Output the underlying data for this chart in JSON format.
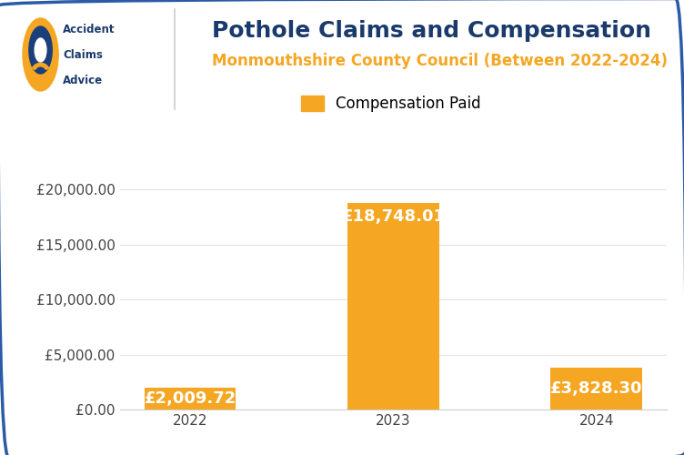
{
  "title": "Pothole Claims and Compensation",
  "subtitle": "Monmouthshire County Council (Between 2022-2024)",
  "legend_label": "Compensation Paid",
  "categories": [
    "2022",
    "2023",
    "2024"
  ],
  "values": [
    2009.72,
    18748.01,
    3828.3
  ],
  "bar_color": "#F5A623",
  "bar_labels": [
    "£2,009.72",
    "£18,748.01",
    "£3,828.30"
  ],
  "yticks": [
    0,
    5000,
    10000,
    15000,
    20000
  ],
  "ytick_labels": [
    "£0.00",
    "£5,000.00",
    "£10,000.00",
    "£15,000.00",
    "£20,000.00"
  ],
  "ylim": [
    0,
    21500
  ],
  "title_color": "#1A3A6B",
  "subtitle_color": "#F5A623",
  "tick_color": "#444444",
  "background_color": "#FFFFFF",
  "border_color": "#2B5BA8",
  "logo_text_color": "#1A3A6B",
  "bar_label_color": "#FFFFFF",
  "bar_label_fontsize": 13,
  "title_fontsize": 18,
  "subtitle_fontsize": 12,
  "legend_fontsize": 12,
  "tick_fontsize": 11,
  "logo_circle_color": "#1B3F7B",
  "logo_arc_color": "#F5A623"
}
